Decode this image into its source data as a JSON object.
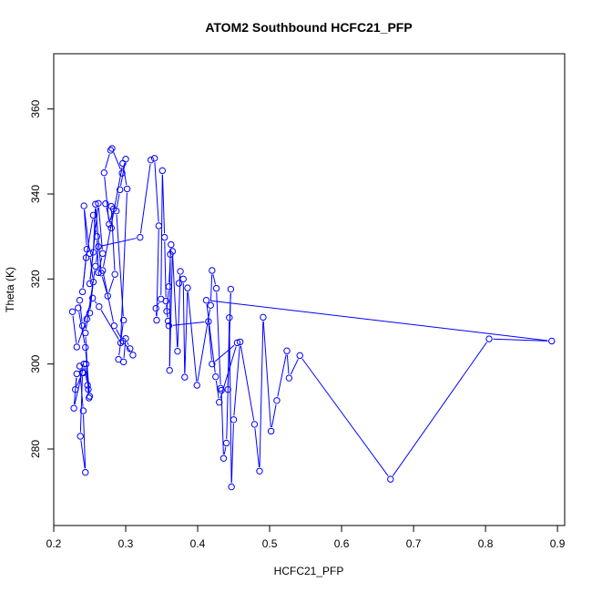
{
  "chart_data": {
    "type": "line",
    "title": "ATOM2 Southbound HCFC21_PFP",
    "xlabel": "HCFC21_PFP",
    "ylabel": "Theta (K)",
    "xlim": [
      0.2,
      0.91
    ],
    "ylim": [
      262,
      373
    ],
    "xticks": [
      0.2,
      0.3,
      0.4,
      0.5,
      0.6,
      0.7,
      0.8,
      0.9
    ],
    "yticks": [
      280,
      300,
      320,
      340,
      360
    ],
    "grid": false,
    "series": [
      {
        "color": "#0000ff",
        "marker": "open-circle",
        "points": [
          [
            0.226,
            312.3
          ],
          [
            0.232,
            304.0
          ],
          [
            0.246,
            310.6
          ],
          [
            0.25,
            312.0
          ],
          [
            0.255,
            319.3
          ],
          [
            0.25,
            326.0
          ],
          [
            0.242,
            337.2
          ],
          [
            0.246,
            327.0
          ],
          [
            0.24,
            317.0
          ],
          [
            0.245,
            325.0
          ],
          [
            0.255,
            335.0
          ],
          [
            0.26,
            330.0
          ],
          [
            0.262,
            321.5
          ],
          [
            0.268,
            326.0
          ],
          [
            0.262,
            337.8
          ],
          [
            0.25,
            318.9
          ],
          [
            0.255,
            326.3
          ],
          [
            0.258,
            337.6
          ],
          [
            0.266,
            321.4
          ],
          [
            0.275,
            316.0
          ],
          [
            0.285,
            321.1
          ],
          [
            0.28,
            337.1
          ],
          [
            0.272,
            337.7
          ],
          [
            0.28,
            332.0
          ],
          [
            0.283,
            336.5
          ],
          [
            0.277,
            332.9
          ],
          [
            0.27,
            345.0
          ],
          [
            0.279,
            350.3
          ],
          [
            0.281,
            350.7
          ],
          [
            0.295,
            344.9
          ],
          [
            0.3,
            348.2
          ],
          [
            0.292,
            341.0
          ],
          [
            0.287,
            336.0
          ],
          [
            0.297,
            310.3
          ],
          [
            0.29,
            301.1
          ],
          [
            0.297,
            300.5
          ],
          [
            0.3,
            306.0
          ],
          [
            0.306,
            303.6
          ],
          [
            0.31,
            302.1
          ],
          [
            0.296,
            305.4
          ],
          [
            0.284,
            309.0
          ],
          [
            0.268,
            322.0
          ],
          [
            0.296,
            347.2
          ],
          [
            0.302,
            341.2
          ],
          [
            0.293,
            305.0
          ],
          [
            0.263,
            313.5
          ],
          [
            0.254,
            315.5
          ],
          [
            0.24,
            309.0
          ],
          [
            0.236,
            315.0
          ],
          [
            0.234,
            313.2
          ],
          [
            0.244,
            303.9
          ],
          [
            0.25,
            292.4
          ],
          [
            0.248,
            294.0
          ],
          [
            0.245,
            300.0
          ],
          [
            0.241,
            297.9
          ],
          [
            0.236,
            299.5
          ],
          [
            0.241,
            289.0
          ],
          [
            0.244,
            274.5
          ],
          [
            0.237,
            283.0
          ],
          [
            0.24,
            298.0
          ],
          [
            0.23,
            294.0
          ],
          [
            0.232,
            297.7
          ],
          [
            0.228,
            289.6
          ],
          [
            0.242,
            300.0
          ],
          [
            0.247,
            295.0
          ],
          [
            0.249,
            292.0
          ],
          [
            0.244,
            307.3
          ],
          [
            0.258,
            323.0
          ],
          [
            0.262,
            327.6
          ],
          [
            0.32,
            329.8
          ],
          [
            0.335,
            348.0
          ],
          [
            0.34,
            348.4
          ],
          [
            0.346,
            332.5
          ],
          [
            0.343,
            310.3
          ],
          [
            0.342,
            313.1
          ],
          [
            0.349,
            315.3
          ],
          [
            0.351,
            345.5
          ],
          [
            0.354,
            329.8
          ],
          [
            0.356,
            314.8
          ],
          [
            0.359,
            310.1
          ],
          [
            0.357,
            312.4
          ],
          [
            0.36,
            318.2
          ],
          [
            0.363,
            328.1
          ],
          [
            0.362,
            325.8
          ],
          [
            0.361,
            298.5
          ],
          [
            0.365,
            326.5
          ],
          [
            0.372,
            303.0
          ],
          [
            0.376,
            321.8
          ],
          [
            0.374,
            319.0
          ],
          [
            0.38,
            320.0
          ],
          [
            0.382,
            296.9
          ],
          [
            0.386,
            317.9
          ],
          [
            0.399,
            295.0
          ],
          [
            0.418,
            313.8
          ],
          [
            0.42,
            322.0
          ],
          [
            0.426,
            317.8
          ],
          [
            0.432,
            294.3
          ],
          [
            0.433,
            293.8
          ],
          [
            0.436,
            277.8
          ],
          [
            0.44,
            281.4
          ],
          [
            0.446,
            317.6
          ],
          [
            0.442,
            294.0
          ],
          [
            0.444,
            310.9
          ],
          [
            0.447,
            271.1
          ],
          [
            0.45,
            286.9
          ],
          [
            0.459,
            305.2
          ],
          [
            0.479,
            285.8
          ],
          [
            0.486,
            274.8
          ],
          [
            0.491,
            311.0
          ],
          [
            0.502,
            284.2
          ],
          [
            0.51,
            291.4
          ],
          [
            0.524,
            303.1
          ],
          [
            0.527,
            296.7
          ],
          [
            0.542,
            302.0
          ],
          [
            0.668,
            272.9
          ],
          [
            0.805,
            305.9
          ],
          [
            0.892,
            305.4
          ],
          [
            0.412,
            315.0
          ],
          [
            0.425,
            297.0
          ],
          [
            0.43,
            291.0
          ],
          [
            0.455,
            305.0
          ],
          [
            0.42,
            300.0
          ],
          [
            0.415,
            310.0
          ],
          [
            0.36,
            309.0
          ]
        ]
      }
    ]
  }
}
